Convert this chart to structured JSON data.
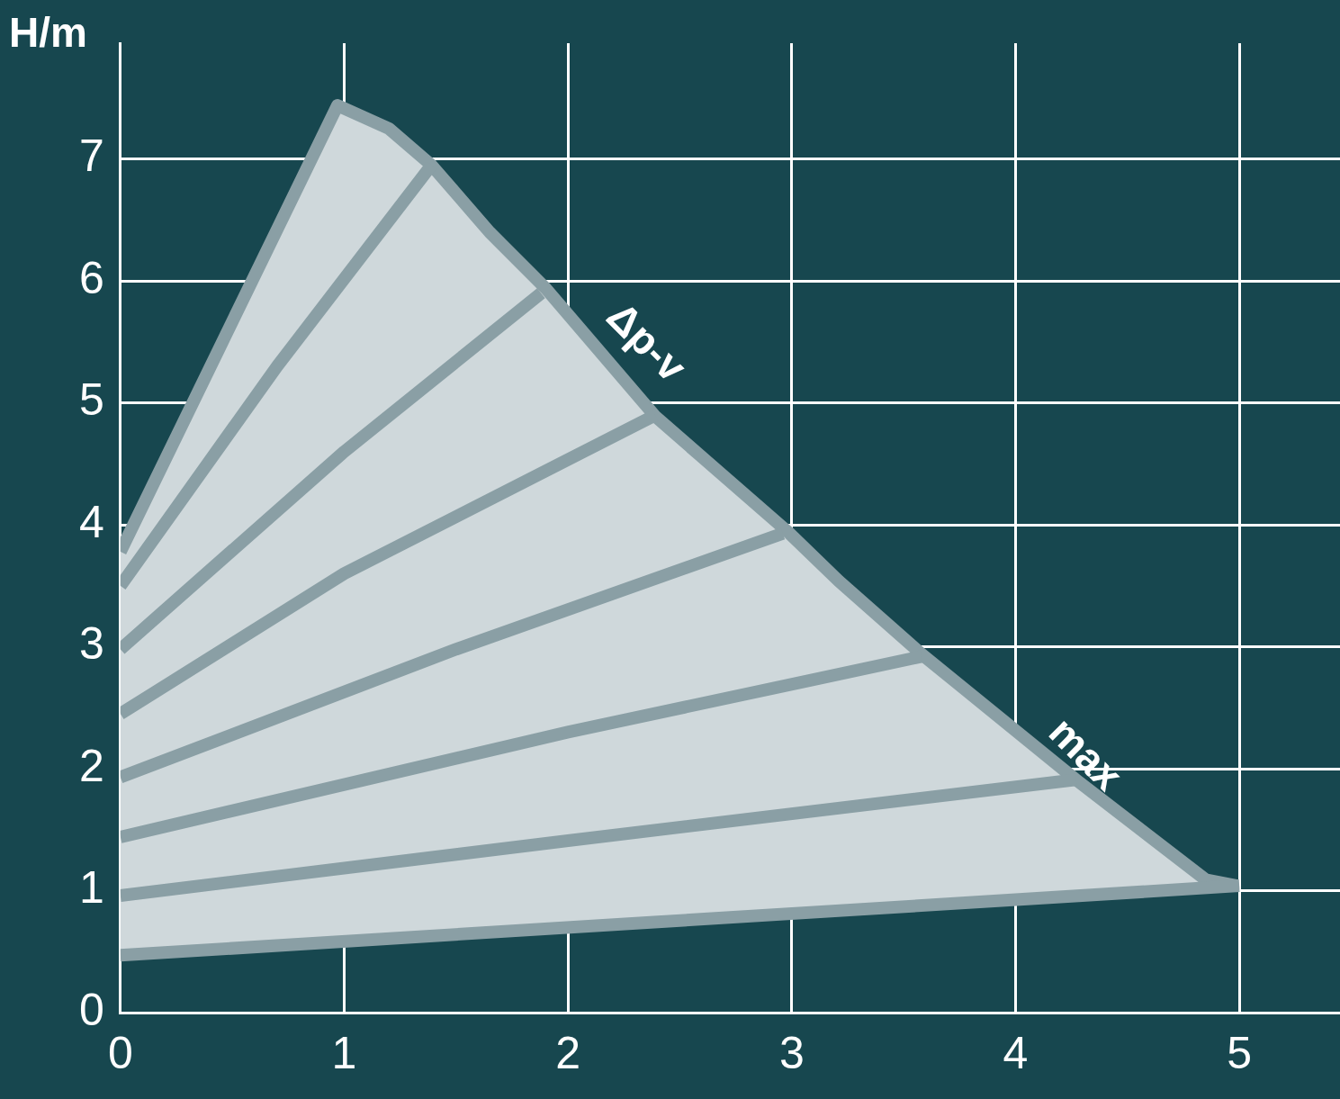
{
  "chart_data": {
    "type": "line",
    "ylabel": "H/m",
    "xlim": [
      0,
      5.45
    ],
    "xticks": [
      0,
      1,
      2,
      3,
      4,
      5
    ],
    "ylim": [
      0,
      7.95
    ],
    "yticks": [
      0,
      1,
      2,
      3,
      4,
      5,
      6,
      7
    ],
    "grid": true,
    "legend": false,
    "marker": "none",
    "line_style": "solid",
    "series": [
      {
        "type": "area",
        "color": "#cfd8db",
        "x": [
          0,
          0.97,
          1.2,
          1.39,
          1.65,
          1.9,
          2.39,
          2.99,
          3.21,
          3.58,
          4.27,
          4.85,
          4.99
        ],
        "values": [
          3.78,
          7.44,
          7.25,
          6.95,
          6.4,
          5.94,
          4.89,
          3.93,
          3.54,
          2.94,
          1.91,
          1.09,
          1.04
        ]
      },
      {
        "color": "#8a9fa5",
        "x": [
          0,
          5
        ],
        "values": [
          0.47,
          1.04
        ]
      },
      {
        "color": "#8a9fa5",
        "x": [
          0,
          0.7,
          1.39
        ],
        "values": [
          3.5,
          5.3,
          6.95
        ]
      },
      {
        "color": "#8a9fa5",
        "x": [
          0,
          1,
          1.88
        ],
        "values": [
          2.98,
          4.6,
          5.9
        ]
      },
      {
        "color": "#8a9fa5",
        "x": [
          0,
          1,
          2.39
        ],
        "values": [
          2.45,
          3.6,
          4.9
        ]
      },
      {
        "color": "#8a9fa5",
        "x": [
          0,
          1.5,
          2.96
        ],
        "values": [
          1.93,
          2.98,
          3.93
        ]
      },
      {
        "color": "#8a9fa5",
        "x": [
          0,
          2,
          3.58
        ],
        "values": [
          1.44,
          2.3,
          2.92
        ]
      },
      {
        "color": "#8a9fa5",
        "x": [
          0,
          2,
          4.27
        ],
        "values": [
          0.96,
          1.41,
          1.91
        ]
      }
    ],
    "annotations": [
      "Δp-v",
      "max"
    ]
  }
}
